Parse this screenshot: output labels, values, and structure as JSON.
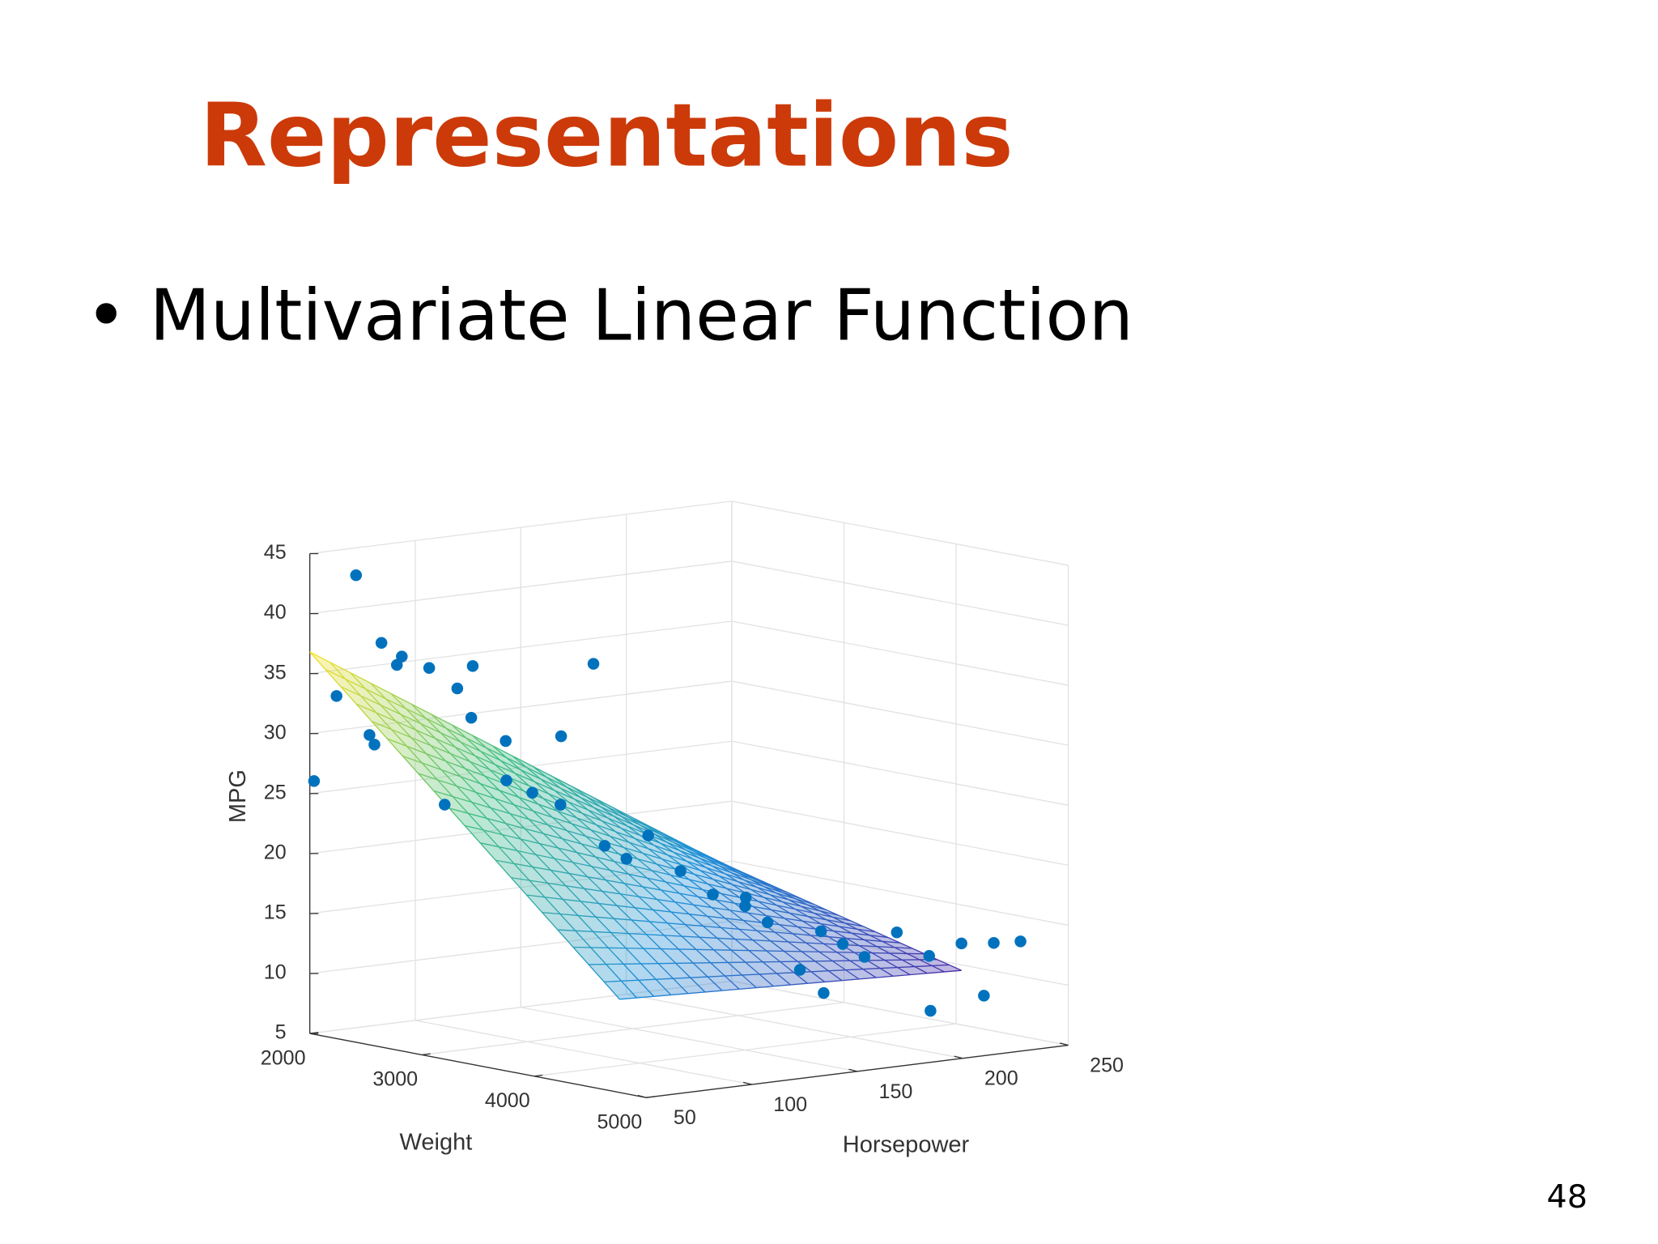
{
  "title": "Representations",
  "bullet": "Multivariate Linear Function",
  "page_number": "48",
  "chart_data": {
    "type": "scatter3d",
    "xlabel": "Weight",
    "ylabel": "Horsepower",
    "zlabel": "MPG",
    "xlim": [
      2000,
      5000
    ],
    "xticks": [
      2000,
      3000,
      4000,
      5000
    ],
    "ylim": [
      50,
      250
    ],
    "yticks": [
      50,
      100,
      150,
      200,
      250
    ],
    "zlim": [
      5,
      45
    ],
    "zticks": [
      5,
      10,
      15,
      20,
      25,
      30,
      35,
      40,
      45
    ],
    "grid": true,
    "color": "#0072bd",
    "x": [
      2130,
      2000,
      2050,
      2200,
      2300,
      2350,
      2400,
      2250,
      2500,
      2600,
      2700,
      2800,
      2450,
      2900,
      3000,
      3100,
      3200,
      3400,
      3300,
      3500,
      3600,
      3700,
      3800,
      3900,
      4000,
      4100,
      4200,
      4300,
      4400,
      4500,
      4600,
      4700,
      4800,
      4900,
      4950,
      5000,
      4700,
      4900,
      4300
    ],
    "y": [
      65,
      52,
      60,
      70,
      68,
      75,
      70,
      65,
      80,
      88,
      90,
      84,
      90,
      95,
      90,
      97,
      105,
      110,
      100,
      110,
      115,
      120,
      130,
      140,
      150,
      145,
      150,
      170,
      175,
      180,
      190,
      200,
      210,
      220,
      230,
      210,
      150,
      190,
      160
    ],
    "z": [
      43.1,
      26,
      33,
      29,
      37.7,
      36.5,
      36,
      30,
      35.7,
      34,
      36,
      32,
      24,
      30,
      27,
      26,
      25,
      37,
      31,
      22,
      21,
      23,
      20,
      18,
      17,
      18,
      16,
      15,
      14,
      13,
      15,
      13,
      14,
      14,
      14,
      10,
      11,
      9,
      12
    ]
  }
}
